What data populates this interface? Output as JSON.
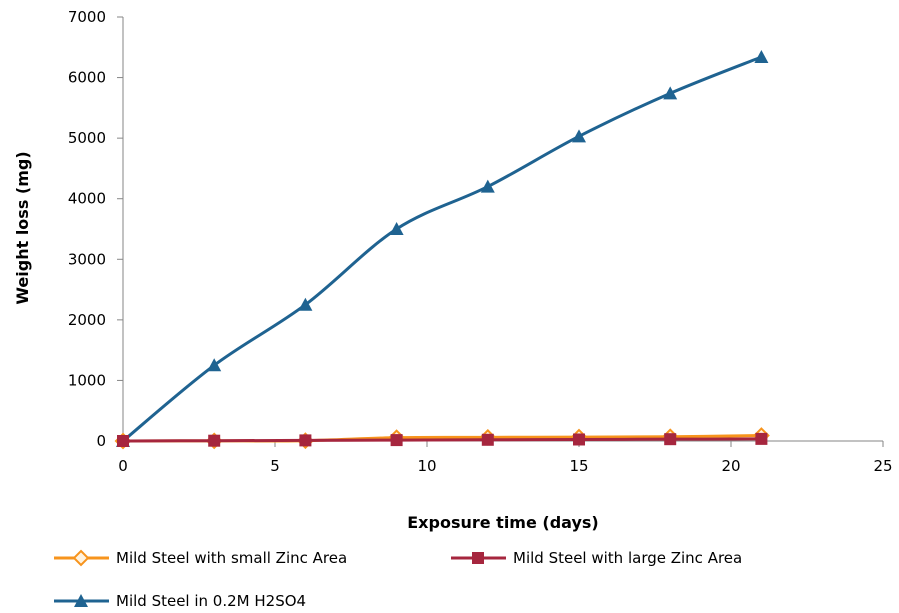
{
  "chart_data": {
    "type": "line",
    "title": "",
    "xlabel": "Exposure time (days)",
    "ylabel": "Weight loss (mg)",
    "xlim": [
      0,
      25
    ],
    "ylim": [
      0,
      7000
    ],
    "xticks": [
      0,
      5,
      10,
      15,
      20,
      25
    ],
    "yticks": [
      0,
      1000,
      2000,
      3000,
      4000,
      5000,
      6000,
      7000
    ],
    "grid": false,
    "legend_position": "bottom",
    "series": [
      {
        "name": "Mild Steel with small Zinc Area",
        "color": "#F7941D",
        "marker": "diamond",
        "x": [
          0,
          3,
          6,
          9,
          12,
          15,
          18,
          21
        ],
        "y": [
          0,
          2,
          5,
          55,
          60,
          65,
          70,
          90
        ]
      },
      {
        "name": "Mild Steel with large Zinc Area",
        "color": "#A6263E",
        "marker": "square",
        "x": [
          0,
          3,
          6,
          9,
          12,
          15,
          18,
          21
        ],
        "y": [
          0,
          5,
          10,
          15,
          20,
          25,
          30,
          35
        ]
      },
      {
        "name": "Mild Steel in 0.2M H2SO4",
        "color": "#1F6391",
        "marker": "triangle",
        "x": [
          0,
          3,
          6,
          9,
          12,
          15,
          18,
          21
        ],
        "y": [
          0,
          1250,
          2250,
          3500,
          4200,
          5030,
          5740,
          6340
        ]
      }
    ]
  }
}
